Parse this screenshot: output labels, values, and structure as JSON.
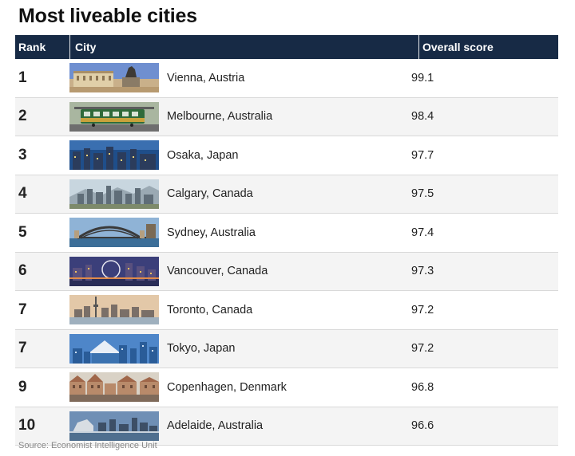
{
  "title": "Most liveable cities",
  "headers": {
    "rank": "Rank",
    "city": "City",
    "score": "Overall score"
  },
  "rows": [
    {
      "rank": "1",
      "city": "Vienna, Austria",
      "score": "99.1",
      "thumb": "vienna-photo"
    },
    {
      "rank": "2",
      "city": "Melbourne, Australia",
      "score": "98.4",
      "thumb": "melbourne-photo"
    },
    {
      "rank": "3",
      "city": "Osaka, Japan",
      "score": "97.7",
      "thumb": "osaka-photo"
    },
    {
      "rank": "4",
      "city": "Calgary, Canada",
      "score": "97.5",
      "thumb": "calgary-photo"
    },
    {
      "rank": "5",
      "city": "Sydney, Australia",
      "score": "97.4",
      "thumb": "sydney-photo"
    },
    {
      "rank": "6",
      "city": "Vancouver, Canada",
      "score": "97.3",
      "thumb": "vancouver-photo"
    },
    {
      "rank": "7",
      "city": "Toronto, Canada",
      "score": "97.2",
      "thumb": "toronto-photo"
    },
    {
      "rank": "7",
      "city": "Tokyo, Japan",
      "score": "97.2",
      "thumb": "tokyo-photo"
    },
    {
      "rank": "9",
      "city": "Copenhagen, Denmark",
      "score": "96.8",
      "thumb": "copenhagen-photo"
    },
    {
      "rank": "10",
      "city": "Adelaide, Australia",
      "score": "96.6",
      "thumb": "adelaide-photo"
    }
  ],
  "source": "Source: Economist Intelligence Unit",
  "colors": {
    "header_bg": "#172a45",
    "header_text": "#ffffff",
    "row_alt": "#f4f4f4"
  }
}
